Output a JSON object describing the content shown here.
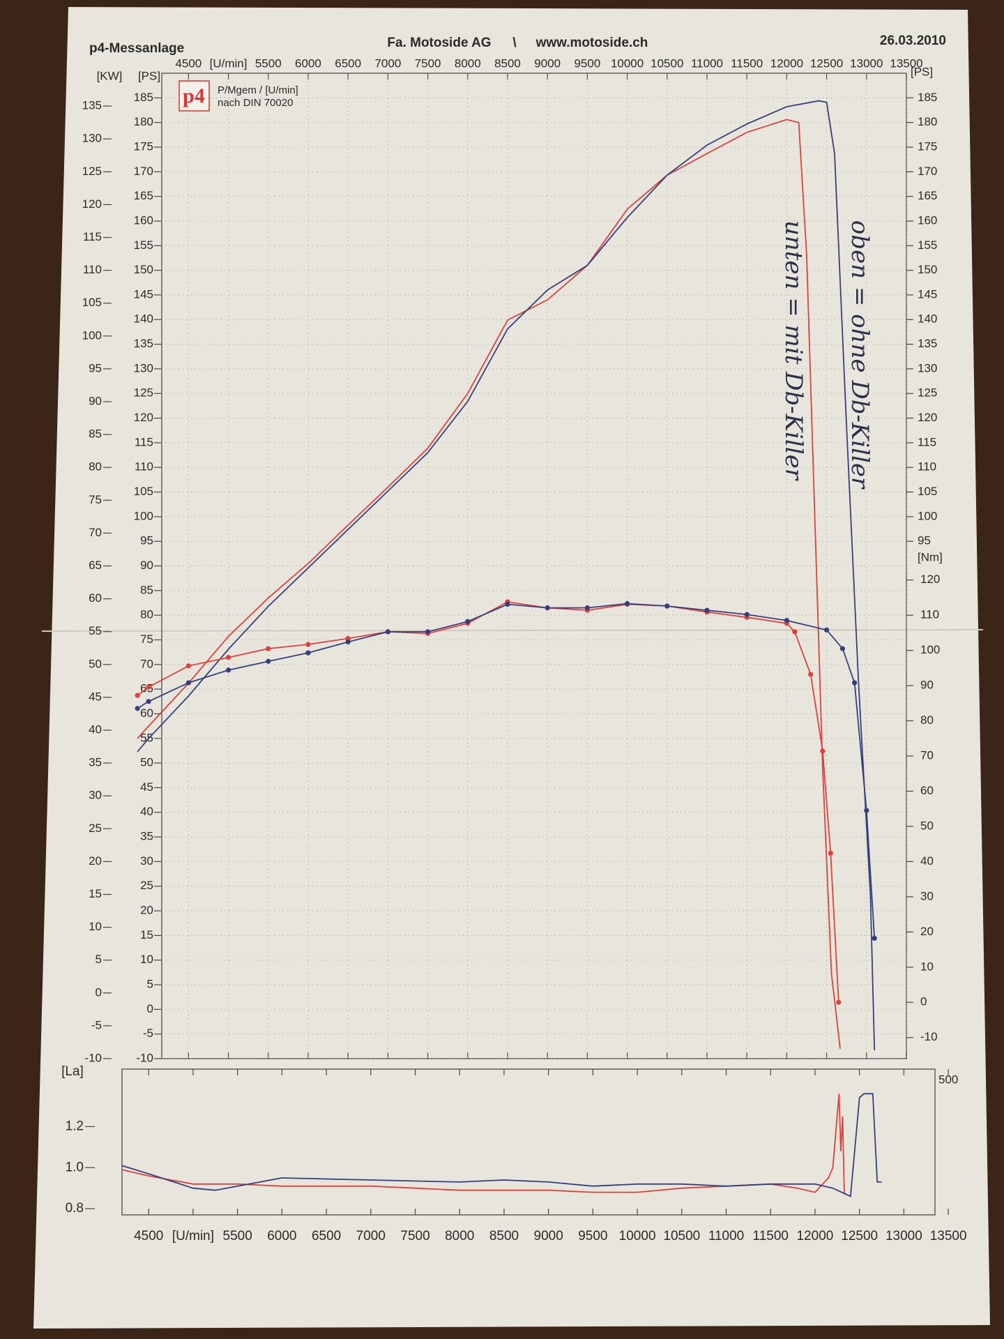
{
  "header": {
    "left": "p4-Messanlage",
    "company": "Fa. Motoside AG",
    "separator": "\\",
    "url": "www.motoside.ch",
    "date": "26.03.2010"
  },
  "logo": {
    "mark": "p4",
    "line1": "P/Mgem / [U/min]",
    "line2": "nach DIN 70020"
  },
  "chart_data": [
    {
      "type": "line",
      "grid": true,
      "xlim": [
        3850,
        13500
      ],
      "xticks": [
        4500,
        {
          "value": 5000,
          "label": "[U/min]"
        },
        5500,
        6000,
        6500,
        7000,
        7500,
        8000,
        8500,
        9000,
        9500,
        10000,
        10500,
        11000,
        11500,
        12000,
        12500,
        13000,
        13500
      ],
      "ylabel": "[PS]",
      "ylim": [
        -10,
        190
      ],
      "yticks": [
        -10,
        -5,
        0,
        5,
        10,
        15,
        20,
        25,
        30,
        35,
        40,
        45,
        50,
        55,
        60,
        65,
        70,
        75,
        80,
        85,
        90,
        95,
        100,
        105,
        110,
        115,
        120,
        125,
        130,
        135,
        140,
        145,
        150,
        155,
        160,
        165,
        170,
        175,
        180,
        185
      ],
      "kw_axis": {
        "label": "[KW]",
        "lim": [
          -10,
          140
        ],
        "ticks": [
          -10,
          -5,
          0,
          5,
          10,
          15,
          20,
          25,
          30,
          35,
          40,
          45,
          50,
          55,
          60,
          65,
          70,
          75,
          80,
          85,
          90,
          95,
          100,
          105,
          110,
          115,
          120,
          125,
          130,
          135
        ]
      },
      "right_ps_axis": {
        "label": "[PS]",
        "ticks": [
          95,
          100,
          105,
          110,
          115,
          120,
          125,
          130,
          135,
          140,
          145,
          150,
          155,
          160,
          165,
          170,
          175,
          180,
          185
        ]
      },
      "y2label": "[Nm]",
      "y2lim": [
        -16,
        264
      ],
      "y2ticks": [
        -10,
        0,
        10,
        20,
        30,
        40,
        50,
        60,
        70,
        80,
        90,
        100,
        110,
        120
      ],
      "series": [
        {
          "color": "#e0403a",
          "markers": false,
          "x": [
            3860,
            4000,
            4500,
            5000,
            5500,
            6000,
            6500,
            7000,
            7500,
            8000,
            8500,
            9000,
            9500,
            10000,
            10500,
            11000,
            11500,
            12000,
            12150,
            12250,
            12350,
            12450,
            12560,
            12670
          ],
          "values": [
            55,
            57.5,
            66.2,
            75.7,
            83.5,
            90.5,
            98.3,
            106,
            113.9,
            125,
            139.9,
            144,
            151,
            162.4,
            169.3,
            173.7,
            178,
            180.6,
            180,
            152.9,
            100.9,
            48.9,
            7.3,
            -8
          ]
        },
        {
          "color": "#34407e",
          "markers": false,
          "x": [
            3860,
            4000,
            4500,
            5000,
            5500,
            6000,
            6500,
            7000,
            7500,
            8000,
            8500,
            9000,
            9500,
            10000,
            10500,
            11000,
            11500,
            12000,
            12400,
            12500,
            12600,
            12750,
            12900,
            13050,
            13100
          ],
          "values": [
            52.3,
            55,
            63.6,
            73.1,
            81.8,
            89.6,
            97.4,
            105.2,
            113,
            123.4,
            138.1,
            146,
            151,
            160.7,
            169.3,
            175.4,
            179.7,
            183.2,
            184.4,
            184.1,
            173.7,
            118.2,
            66.2,
            22.9,
            -8.3
          ]
        },
        {
          "color": "#e0403a",
          "markers": true,
          "axis": "y2",
          "x": [
            3860,
            4000,
            4500,
            5000,
            5500,
            6000,
            6500,
            7000,
            7500,
            8000,
            8500,
            9000,
            9500,
            10000,
            10500,
            11000,
            11500,
            12000,
            12100,
            12300,
            12450,
            12550,
            12650
          ],
          "values": [
            87.2,
            89.6,
            95.6,
            98,
            100.5,
            101.7,
            103.4,
            105.3,
            104.8,
            107.7,
            113.8,
            112.1,
            111.4,
            113.1,
            112.6,
            110.9,
            109.4,
            107.7,
            105.3,
            93.2,
            71.4,
            42.4,
            0
          ]
        },
        {
          "color": "#34407e",
          "markers": true,
          "axis": "y2",
          "x": [
            3860,
            4000,
            4500,
            5000,
            5500,
            6000,
            6500,
            7000,
            7500,
            8000,
            8500,
            9000,
            9500,
            10000,
            10500,
            11000,
            11500,
            12000,
            12500,
            12700,
            12850,
            13000,
            13100
          ],
          "values": [
            83.5,
            85.5,
            90.8,
            94.4,
            96.9,
            99.3,
            102.4,
            105.3,
            105.3,
            108.2,
            113.1,
            112.1,
            112.1,
            113.3,
            112.6,
            111.4,
            110.2,
            108.5,
            105.8,
            100.5,
            90.8,
            54.5,
            18.2
          ]
        }
      ],
      "annotations": [
        "unten = mit Db-Killer",
        "oben = ohne Db-Killer"
      ]
    },
    {
      "type": "line",
      "xlim": [
        4200,
        13350
      ],
      "xticks": [
        4500,
        {
          "value": 5000,
          "label": "[U/min]"
        },
        5500,
        6000,
        6500,
        7000,
        7500,
        8000,
        8500,
        9000,
        9500,
        10000,
        10500,
        11000,
        11500,
        12000,
        12500,
        13000,
        13500
      ],
      "ylabel": "[La]",
      "ylim": [
        0.77,
        1.48
      ],
      "yticks": [
        0.8,
        {
          "value": 1,
          "label": "1.0"
        },
        1.2
      ],
      "corner_label": "500",
      "series": [
        {
          "color": "#e0403a",
          "x": [
            4200,
            4500,
            5000,
            5500,
            6000,
            7000,
            7500,
            8000,
            9000,
            9500,
            10000,
            10500,
            11000,
            11500,
            11800,
            12000,
            12150,
            12200,
            12270,
            12290,
            12310,
            12330
          ],
          "values": [
            0.99,
            0.96,
            0.92,
            0.92,
            0.91,
            0.91,
            0.9,
            0.89,
            0.89,
            0.88,
            0.88,
            0.9,
            0.91,
            0.92,
            0.9,
            0.88,
            0.95,
            1.0,
            1.36,
            1.08,
            1.25,
            0.87
          ]
        },
        {
          "color": "#34407e",
          "x": [
            4200,
            4500,
            5000,
            5250,
            6000,
            7000,
            8000,
            8500,
            9000,
            9500,
            10000,
            10500,
            11000,
            11500,
            12000,
            12200,
            12400,
            12500,
            12550,
            12650,
            12700,
            12750
          ],
          "values": [
            1.01,
            0.97,
            0.9,
            0.89,
            0.95,
            0.94,
            0.93,
            0.94,
            0.93,
            0.91,
            0.92,
            0.92,
            0.91,
            0.92,
            0.92,
            0.9,
            0.86,
            1.34,
            1.36,
            1.36,
            0.93,
            0.93
          ]
        }
      ]
    }
  ]
}
